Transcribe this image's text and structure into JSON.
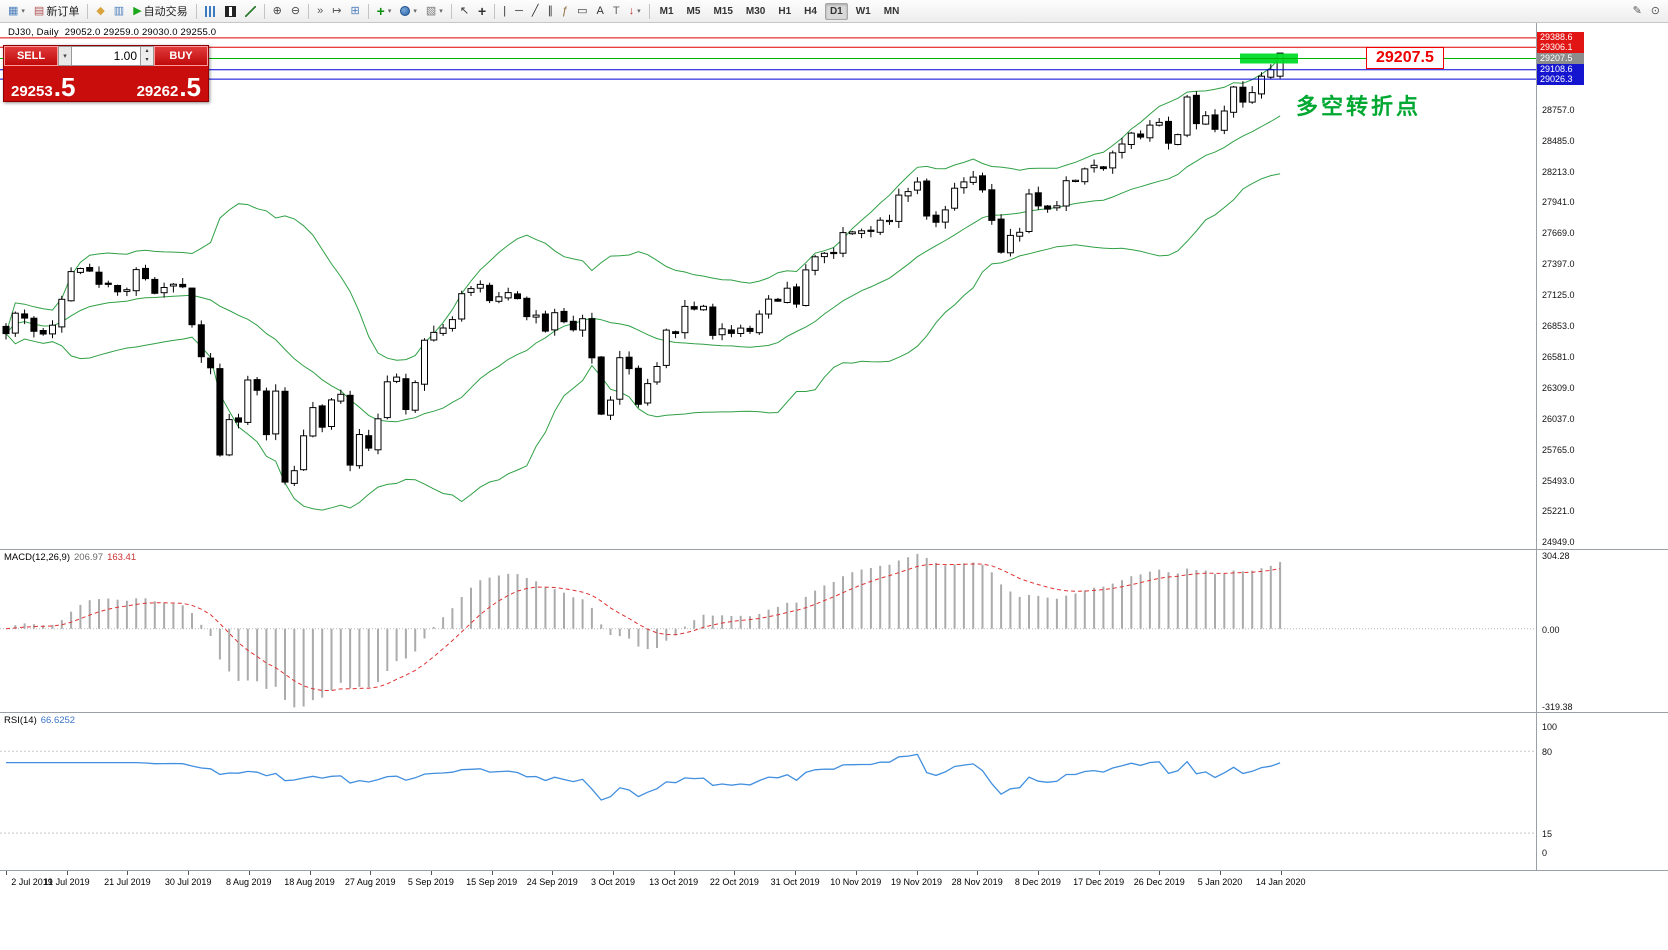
{
  "toolbar": {
    "timeframes": [
      "M1",
      "M5",
      "M15",
      "M30",
      "H1",
      "H4",
      "D1",
      "W1",
      "MN"
    ],
    "active_timeframe": "D1",
    "items": [
      {
        "name": "new-chart-icon",
        "glyph": "▦",
        "color": "#4a7ebb",
        "caret": true
      },
      {
        "name": "new-order-button",
        "glyph": "▤",
        "color": "#b05050",
        "label": "新订单"
      },
      {
        "sep": true
      },
      {
        "name": "market-watch-icon",
        "glyph": "◆",
        "color": "#d9a33c"
      },
      {
        "name": "data-window-icon",
        "glyph": "▥",
        "color": "#4a7ebb"
      },
      {
        "name": "autotrading-button",
        "glyph": "▶",
        "color": "#1ca81c",
        "label": "自动交易"
      },
      {
        "sep": true
      },
      {
        "name": "bar-chart-icon",
        "shape": "bars"
      },
      {
        "name": "candlestick-chart-icon",
        "shape": "candle"
      },
      {
        "name": "line-chart-icon",
        "shape": "line"
      },
      {
        "sep": true
      },
      {
        "name": "zoom-in-icon",
        "glyph": "⊕",
        "color": "#444"
      },
      {
        "name": "zoom-out-icon",
        "glyph": "⊖",
        "color": "#444"
      },
      {
        "sep": true
      },
      {
        "name": "auto-scroll-icon",
        "glyph": "»",
        "color": "#555"
      },
      {
        "name": "chart-shift-icon",
        "glyph": "↦",
        "color": "#555"
      },
      {
        "name": "tile-windows-icon",
        "glyph": "⊞",
        "color": "#4a7ebb"
      },
      {
        "sep": true
      },
      {
        "name": "indicators-icon",
        "glyph": "+",
        "color": "#0a8f0a",
        "big": true,
        "caret": true
      },
      {
        "name": "periods-icon",
        "shape": "circle",
        "caret": true
      },
      {
        "name": "templates-icon",
        "glyph": "▧",
        "color": "#777",
        "caret": true
      },
      {
        "sep": true
      },
      {
        "name": "cursor-icon",
        "glyph": "↖",
        "color": "#333"
      },
      {
        "name": "crosshair-icon",
        "glyph": "+",
        "color": "#333",
        "big": true
      },
      {
        "sep": true
      },
      {
        "name": "vertical-line-icon",
        "glyph": "|",
        "color": "#333"
      },
      {
        "name": "horizontal-line-icon",
        "glyph": "─",
        "color": "#333"
      },
      {
        "name": "trendline-icon",
        "glyph": "╱",
        "color": "#333"
      },
      {
        "name": "channel-icon",
        "glyph": "∥",
        "color": "#333"
      },
      {
        "name": "fibonacci-icon",
        "glyph": "ƒ",
        "color": "#8a6d3b"
      },
      {
        "name": "shapes-icon",
        "glyph": "▭",
        "color": "#333"
      },
      {
        "name": "text-icon",
        "glyph": "A",
        "color": "#333"
      },
      {
        "name": "label-icon",
        "glyph": "T",
        "color": "#666"
      },
      {
        "name": "arrows-icon",
        "glyph": "↓",
        "color": "#c03030",
        "caret": true
      },
      {
        "sep": true
      },
      {
        "tf_group": true
      },
      {
        "spacer": true
      },
      {
        "name": "chart-edit-icon",
        "glyph": "✎",
        "color": "#555"
      },
      {
        "name": "chart-search-icon",
        "glyph": "⊙",
        "color": "#555"
      }
    ]
  },
  "trade_panel": {
    "sell_label": "SELL",
    "buy_label": "BUY",
    "volume": "1.00",
    "sell_price": "29253",
    "sell_pips": ".5",
    "buy_price": "29262",
    "buy_pips": ".5"
  },
  "chart": {
    "symbol_period": "DJ30, Daily",
    "ohlc": "29052.0 29259.0 29030.0 29255.0",
    "callout": "29207.5",
    "annotation": "多空转折点",
    "colors": {
      "band": "#2fa045",
      "highlight": "#00dc28",
      "macd_hist": "#ababab",
      "macd_signal": "#e03232",
      "rsi_line": "#418fde"
    },
    "hlines": [
      {
        "price": "29388.6",
        "color": "red"
      },
      {
        "price": "29306.1",
        "color": "red"
      },
      {
        "price": "29207.5",
        "color": "green"
      },
      {
        "price": "29108.6",
        "color": "blue"
      },
      {
        "price": "29026.3",
        "color": "blue"
      }
    ],
    "y_axis": [
      "28757.0",
      "28485.0",
      "28213.0",
      "27941.0",
      "27669.0",
      "27397.0",
      "27125.0",
      "26853.0",
      "26581.0",
      "26309.0",
      "26037.0",
      "25765.0",
      "25493.0",
      "25221.0",
      "24949.0"
    ],
    "x_axis": [
      "2 Jul 2019",
      "11 Jul 2019",
      "21 Jul 2019",
      "30 Jul 2019",
      "8 Aug 2019",
      "18 Aug 2019",
      "27 Aug 2019",
      "5 Sep 2019",
      "15 Sep 2019",
      "24 Sep 2019",
      "3 Oct 2019",
      "13 Oct 2019",
      "22 Oct 2019",
      "31 Oct 2019",
      "10 Nov 2019",
      "19 Nov 2019",
      "28 Nov 2019",
      "8 Dec 2019",
      "17 Dec 2019",
      "26 Dec 2019",
      "5 Jan 2020",
      "14 Jan 2020"
    ],
    "macd_label": "MACD(12,26,9)",
    "macd_value": "206.97",
    "macd_signal_value": "163.41",
    "macd_axis": [
      "304.28",
      "0.00",
      "-319.38"
    ],
    "rsi_label": "RSI(14)",
    "rsi_value": "66.6252",
    "rsi_axis": [
      "100",
      "80",
      "15",
      "0"
    ],
    "rsi_levels": [
      80,
      15
    ],
    "highlight_box": {
      "price": "29207.5"
    }
  },
  "chart_data": {
    "type": "candlestick",
    "symbol": "DJ30",
    "timeframe": "Daily",
    "last_candle": {
      "open": 29052.0,
      "high": 29259.0,
      "low": 29030.0,
      "close": 29255.0
    },
    "price_axis_range": [
      24949.0,
      29388.6
    ],
    "closes": [
      26786,
      26966,
      26922,
      26806,
      26783,
      26860,
      27088,
      27332,
      27359,
      27336,
      27220,
      27223,
      27154,
      27172,
      27349,
      27270,
      27141,
      27192,
      27221,
      27198,
      26864,
      26583,
      26485,
      25718,
      26029,
      26007,
      26378,
      26287,
      25897,
      26280,
      25479,
      25579,
      25886,
      26135,
      25962,
      26202,
      26252,
      25629,
      25898,
      25778,
      26036,
      26362,
      26403,
      26118,
      26355,
      26728,
      26797,
      26835,
      26909,
      27137,
      27182,
      27219,
      27076,
      27110,
      27147,
      27094,
      26935,
      26949,
      26808,
      26970,
      26891,
      26820,
      26917,
      26573,
      26078,
      26201,
      26574,
      26478,
      26164,
      26346,
      26496,
      26817,
      26787,
      27025,
      27002,
      27026,
      26770,
      26828,
      26788,
      26834,
      26805,
      26958,
      27090,
      27071,
      27186,
      27046,
      27347,
      27462,
      27493,
      27492,
      27675,
      27681,
      27691,
      27692,
      27784,
      27782,
      28005,
      28036,
      28120,
      27821,
      27766,
      27875,
      28066,
      28121,
      28164,
      28051,
      27783,
      27503,
      27650,
      27678,
      28015,
      27910,
      27882,
      27911,
      28132,
      28135,
      28236,
      28267,
      28239,
      28377,
      28455,
      28551,
      28516,
      28621,
      28645,
      28462,
      28538,
      28869,
      28635,
      28704,
      28584,
      28745,
      28957,
      28824,
      28907,
      29052,
      29110,
      29255
    ],
    "indicators": [
      {
        "type": "bollinger_bands",
        "period": 20,
        "deviation": 2
      },
      {
        "type": "macd",
        "fast": 12,
        "slow": 26,
        "signal": 9,
        "current": 206.97,
        "current_signal": 163.41,
        "axis_range": [
          -319.38,
          304.28
        ]
      },
      {
        "type": "rsi",
        "period": 14,
        "current": 66.6252,
        "levels": [
          80,
          15
        ],
        "axis_range": [
          0,
          100
        ]
      }
    ],
    "x_labels": [
      "2 Jul 2019",
      "11 Jul 2019",
      "21 Jul 2019",
      "30 Jul 2019",
      "8 Aug 2019",
      "18 Aug 2019",
      "27 Aug 2019",
      "5 Sep 2019",
      "15 Sep 2019",
      "24 Sep 2019",
      "3 Oct 2019",
      "13 Oct 2019",
      "22 Oct 2019",
      "31 Oct 2019",
      "10 Nov 2019",
      "19 Nov 2019",
      "28 Nov 2019",
      "8 Dec 2019",
      "17 Dec 2019",
      "26 Dec 2019",
      "5 Jan 2020",
      "14 Jan 2020"
    ]
  }
}
